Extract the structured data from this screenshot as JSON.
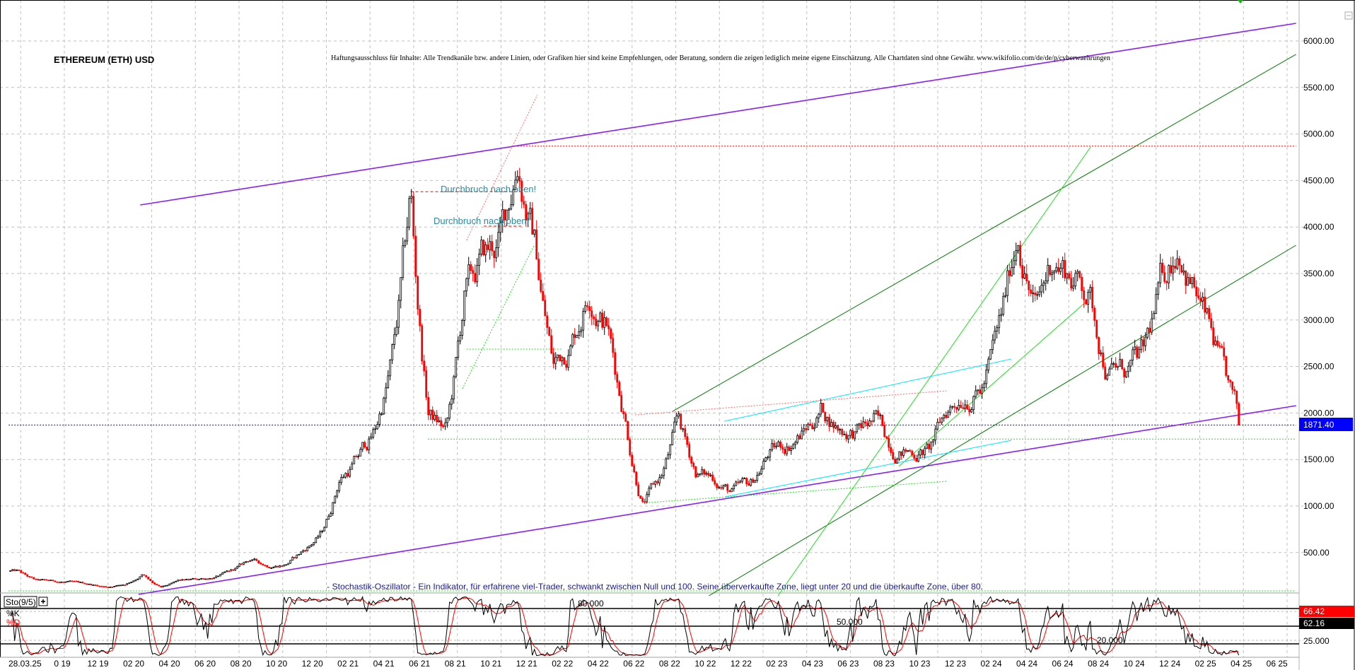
{
  "header": {
    "title": "ETHEREUM (ETH) USD",
    "disclaimer": "Haftungsausschluss für Inhalte: Alle Trendkanäle bzw. andere Linien, oder Grafiken hier sind keine Empfehlungen, oder Beratung, sondern die zeigen lediglich meine eigene Einschätzung. Alle Chartdaten sind ohne Gewähr.  www.wikifolio.com/de/de/p/cyberwaehrungen"
  },
  "colors": {
    "up_candle": "#000000",
    "down_candle": "#ff0000",
    "channel_purple": "#8b1ff0",
    "dark_green": "#007a00",
    "light_green": "#22dd22",
    "cyan": "#00e5ff",
    "last_price": "#0000ff",
    "stoch_k": "#000000",
    "stoch_d": "#ff0000"
  },
  "chart_data": {
    "type": "candlestick",
    "title": "ETHEREUM (ETH) USD",
    "y_axis": {
      "ticks": [
        "500.00",
        "1000.00",
        "1500.00",
        "2000.00",
        "2500.00",
        "3000.00",
        "3500.00",
        "4000.00",
        "4500.00",
        "5000.00",
        "5500.00",
        "6000.00"
      ],
      "tick_values": [
        500,
        1000,
        1500,
        2000,
        2500,
        3000,
        3500,
        4000,
        4500,
        5000,
        5500,
        6000
      ],
      "grid": true
    },
    "x_axis": {
      "first_label": "28.03.25",
      "ticks": [
        "0 19",
        "12 19",
        "02 20",
        "04 20",
        "06 20",
        "08 20",
        "10 20",
        "12 20",
        "02 21",
        "04 21",
        "06 21",
        "08 21",
        "10 21",
        "12 21",
        "02 22",
        "04 22",
        "06 22",
        "08 22",
        "10 22",
        "12 22",
        "02 23",
        "04 23",
        "06 23",
        "08 23",
        "10 23",
        "12 23",
        "02 24",
        "04 24",
        "06 24",
        "08 24",
        "10 24",
        "12 24",
        "02 25",
        "04 25",
        "06 25"
      ],
      "grid": true
    },
    "monthly_close": {
      "start": "2019-07",
      "values": [
        300,
        200,
        190,
        180,
        160,
        130,
        160,
        270,
        120,
        190,
        210,
        235,
        300,
        420,
        360,
        380,
        520,
        700,
        1300,
        1500,
        1800,
        2600,
        4300,
        2000,
        1800,
        3200,
        3600,
        3800,
        4800,
        3800,
        2500,
        2800,
        3400,
        3000,
        2000,
        1050,
        1300,
        1900,
        1350,
        1300,
        1150,
        1200,
        1550,
        1650,
        1800,
        2050,
        1850,
        1800,
        1900,
        1650,
        1600,
        1600,
        2000,
        2250,
        2300,
        2900,
        4000,
        3100,
        3700,
        3500,
        3300,
        2500,
        2450,
        2550,
        3300,
        3900,
        3300,
        2700,
        1871.4
      ]
    },
    "last_price": "1871.40",
    "last_price_value": 1871.4,
    "trendlines": [
      {
        "color": "channel_purple",
        "style": "solid",
        "from": [
          "2020-02-12",
          4237
        ],
        "to": [
          "2025-07-03",
          6190
        ]
      },
      {
        "color": "channel_purple",
        "style": "solid",
        "from": [
          "2020-02-09",
          50
        ],
        "to": [
          "2025-07-03",
          2079
        ]
      },
      {
        "color": "dark_green",
        "style": "solid",
        "from": [
          "2022-08-06",
          2018
        ],
        "to": [
          "2025-07-03",
          5856
        ]
      },
      {
        "color": "dark_green",
        "style": "solid",
        "from": [
          "2022-10-07",
          35
        ],
        "to": [
          "2025-07-03",
          3804
        ]
      },
      {
        "color": "light_green",
        "style": "solid",
        "from": [
          "2023-02-03",
          35
        ],
        "to": [
          "2024-07-18",
          4860
        ]
      },
      {
        "color": "light_green",
        "style": "solid",
        "from": [
          "2023-08-26",
          1426
        ],
        "to": [
          "2024-07-09",
          3188
        ]
      },
      {
        "color": "light_green",
        "style": "dotted",
        "from": [
          "2021-08-13",
          2261
        ],
        "to": [
          "2021-12-13",
          3796
        ]
      },
      {
        "color": "cyan",
        "style": "solid",
        "from": [
          "2022-11-03",
          1912
        ],
        "to": [
          "2024-03-05",
          2581
        ]
      },
      {
        "color": "cyan",
        "style": "solid",
        "from": [
          "2022-11-04",
          1099
        ],
        "to": [
          "2024-03-05",
          1707
        ]
      },
      {
        "color": "#ff6666",
        "style": "dotted",
        "from": [
          "2021-08-20",
          3857
        ],
        "to": [
          "2021-12-19",
          5422
        ]
      },
      {
        "color": "#ff6666",
        "style": "dotted",
        "from": [
          "2022-06-03",
          1980
        ],
        "to": [
          "2023-11-16",
          2239
        ]
      },
      {
        "color": "light_green",
        "style": "dotted",
        "from": [
          "2022-06-26",
          1038
        ],
        "to": [
          "2023-11-16",
          1266
        ]
      }
    ],
    "horizontal_lines": [
      {
        "price": 4870,
        "color": "#ff0000",
        "style": "dotted",
        "from": "2021-11-16",
        "to": "2025-07-03"
      },
      {
        "price": 4380,
        "color": "#ff0000",
        "style": "dashed",
        "from": "2021-05-16",
        "to": "2021-11-25"
      },
      {
        "price": 4009,
        "color": "#ff0000",
        "style": "dashed",
        "from": "2021-09-19",
        "to": "2021-11-25"
      },
      {
        "price": 1720,
        "color": "light_green",
        "style": "dotted",
        "from": "2021-06-15",
        "to": "2025-07-03"
      },
      {
        "price": 2687,
        "color": "light_green",
        "style": "dotted",
        "from": "2021-08-20",
        "to": "2022-01-29"
      },
      {
        "price": 88,
        "color": "light_green",
        "style": "dotted",
        "from": "2019-07-01",
        "to": "2025-07-03"
      },
      {
        "price": 1871.4,
        "color": "last_price",
        "style": "dotted",
        "from": "2019-07-01",
        "to": "2025-07-03"
      }
    ],
    "annotations": [
      {
        "text": "Durchbruch nach oben!",
        "date": "2021-09-01",
        "price": 4430
      },
      {
        "text": "Durchbruch nach oben!",
        "date": "2021-08-20",
        "price": 4080
      }
    ]
  },
  "oscillator": {
    "name": "Sto(9/5)",
    "k_label": "%K",
    "d_label": "%D",
    "caption": "- Stochastik-Oszillator - Ein Indikator, für erfahrene viel-Trader, schwankt zwischen Null und 100. Seine überverkaufte Zone, liegt unter 20 und die überkaufte Zone, über 80.",
    "k_period": 9,
    "d_period": 5,
    "levels": [
      80,
      50,
      20
    ],
    "level_labels": [
      "80.000",
      "50.000",
      "20.000"
    ],
    "k_value": "66.42",
    "d_value": "62.16",
    "axis_label": "25.000"
  }
}
